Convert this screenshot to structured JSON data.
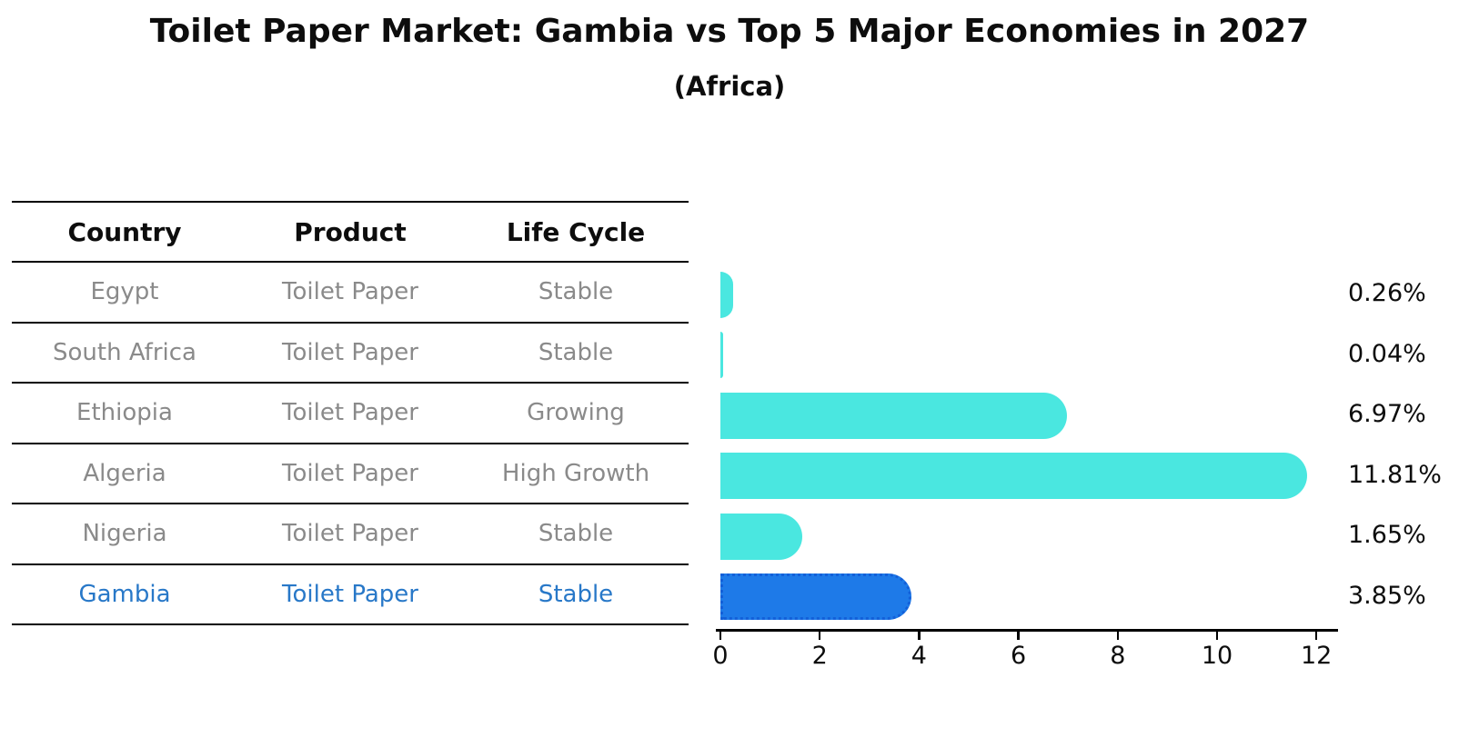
{
  "header": {
    "title": "Toilet Paper Market: Gambia vs Top 5 Major Economies in 2027",
    "subtitle": "(Africa)"
  },
  "table": {
    "columns": [
      "Country",
      "Product",
      "Life Cycle"
    ],
    "rows": [
      {
        "country": "Egypt",
        "product": "Toilet Paper",
        "life_cycle": "Stable",
        "highlight": false
      },
      {
        "country": "South Africa",
        "product": "Toilet Paper",
        "life_cycle": "Stable",
        "highlight": false
      },
      {
        "country": "Ethiopia",
        "product": "Toilet Paper",
        "life_cycle": "Growing",
        "highlight": false
      },
      {
        "country": "Algeria",
        "product": "Toilet Paper",
        "life_cycle": "High Growth",
        "highlight": false
      },
      {
        "country": "Nigeria",
        "product": "Toilet Paper",
        "life_cycle": "Stable",
        "highlight": true
      }
    ],
    "highlight_row": {
      "country": "Gambia",
      "product": "Toilet Paper",
      "life_cycle": "Stable"
    }
  },
  "chart_data": {
    "type": "bar",
    "orientation": "horizontal",
    "title": "Toilet Paper Market: Gambia vs Top 5 Major Economies in 2027",
    "subtitle": "(Africa)",
    "categories": [
      "Egypt",
      "South Africa",
      "Ethiopia",
      "Algeria",
      "Nigeria",
      "Gambia"
    ],
    "values": [
      0.26,
      0.04,
      6.97,
      11.81,
      1.65,
      3.85
    ],
    "value_labels": [
      "0.26%",
      "0.04%",
      "6.97%",
      "11.81%",
      "1.65%",
      "3.85%"
    ],
    "highlight_category": "Gambia",
    "xlabel": "",
    "ylabel": "",
    "xlim": [
      0,
      12.5
    ],
    "x_ticks": [
      0,
      2,
      4,
      6,
      8,
      10,
      12
    ],
    "grid": false,
    "legend": false,
    "bar_color": "#4ae7e0",
    "highlight_bar_color": "#1e7ae8",
    "highlight_bar_border_color": "#1360d9",
    "value_label_color": "#0d0d0d",
    "table_text_color": "#8a8a8a",
    "highlight_text_color": "#2878c8"
  }
}
